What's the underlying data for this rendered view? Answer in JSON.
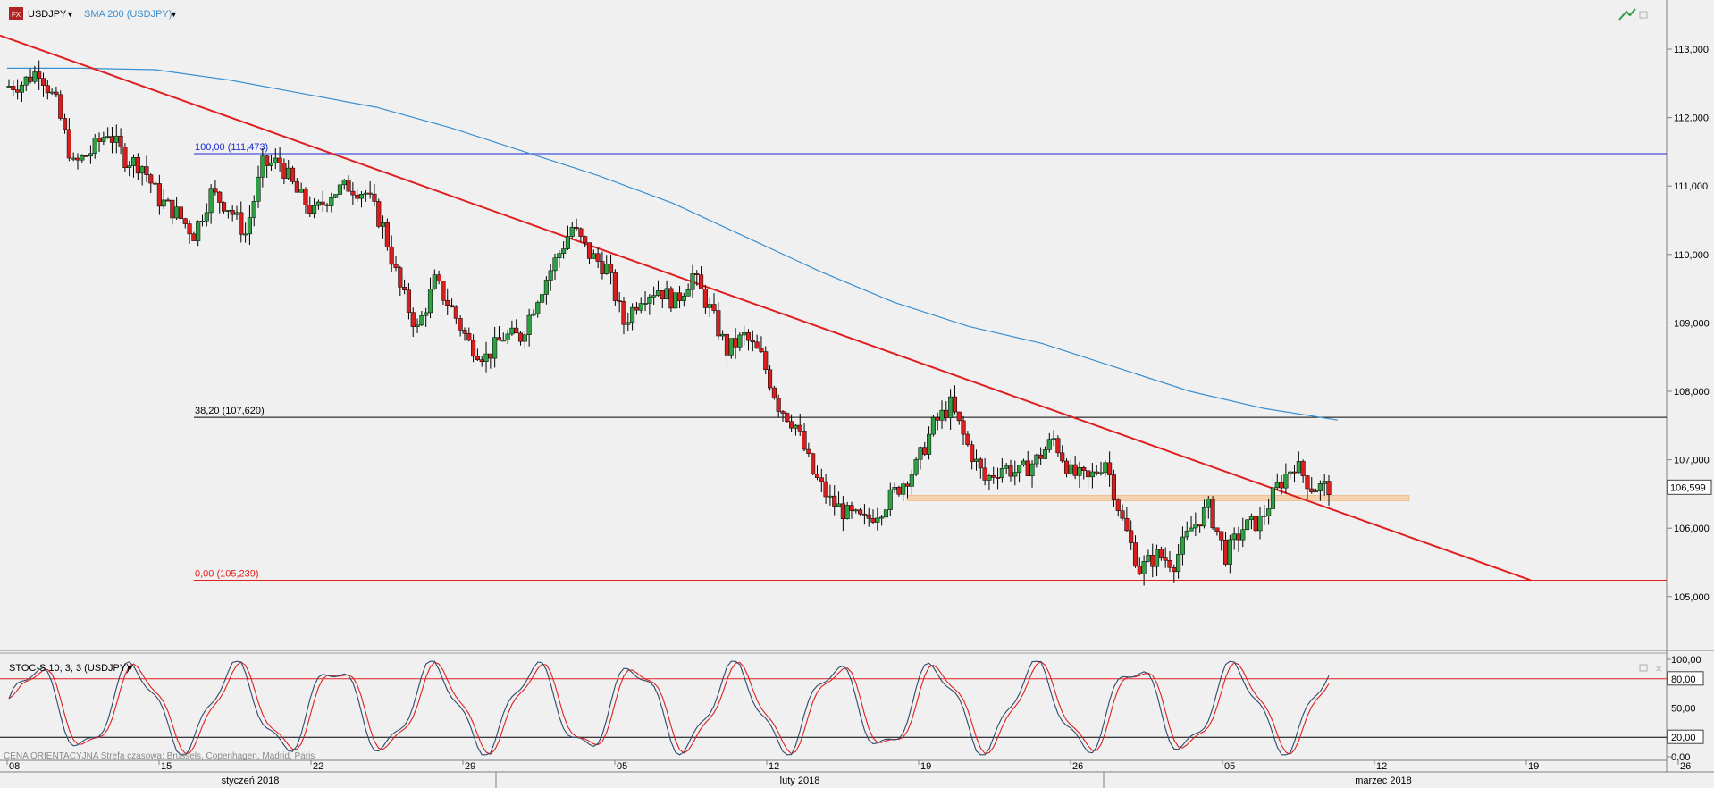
{
  "symbol": {
    "badge": "FX",
    "name": "USDJPY",
    "overlay_label": "SMA 200 (USDJPY)",
    "overlay_color": "#3a8fd0"
  },
  "indicator": {
    "label": "STOC-S 10; 3; 3 (USDJPY)",
    "k_color": "#2e4a6b",
    "d_color": "#e02020",
    "axis_ticks": [
      "100,00",
      "80,00",
      "50,00",
      "20,00",
      "0,00"
    ],
    "boxed_levels": [
      "80,00",
      "20,00"
    ]
  },
  "footer_note": "CENA ORIENTACYJNA   Strefa czasowa: Brussels, Copenhagen, Madrid, Paris",
  "colors": {
    "up_candle": "#2ea043",
    "down_candle": "#d62020",
    "trendline": "#e02020",
    "fib_100": "#1a2bd0",
    "fib_382": "#000000",
    "fib_0": "#e02020",
    "zone": "#f5c89a",
    "background": "#f0f0f0"
  },
  "chart_data": {
    "type": "candlestick",
    "symbol": "USDJPY",
    "y_ticks": [
      "113,000",
      "112,000",
      "111,000",
      "110,000",
      "109,000",
      "108,000",
      "107,000",
      "106,000",
      "105,000"
    ],
    "ylim": [
      104.3,
      113.7
    ],
    "current_price": "106,599",
    "x_day_labels": [
      "08",
      "15",
      "22",
      "29",
      "05",
      "12",
      "19",
      "26",
      "05",
      "12",
      "19",
      "26"
    ],
    "month_labels": [
      "styczeń 2018",
      "luty 2018",
      "marzec 2018"
    ],
    "horizontal_levels": [
      {
        "label": "100,00 (111,473)",
        "value": 111.473
      },
      {
        "label": "38,20 (107,620)",
        "value": 107.62
      },
      {
        "label": "0,00 (105,239)",
        "value": 105.239
      }
    ],
    "support_zone": {
      "low": 106.4,
      "high": 106.48
    },
    "trendline": {
      "start": 113.2,
      "end": 105.24
    },
    "sma200": [
      112.72,
      112.72,
      112.7,
      112.55,
      112.35,
      112.15,
      111.85,
      111.5,
      111.15,
      110.75,
      110.25,
      109.75,
      109.3,
      108.95,
      108.7,
      108.35,
      108.0,
      107.75,
      107.58
    ],
    "closes": [
      112.5,
      112.7,
      112.2,
      111.3,
      111.5,
      111.8,
      111.4,
      111.3,
      110.8,
      110.6,
      110.3,
      110.9,
      110.7,
      110.3,
      111.3,
      111.35,
      110.9,
      110.6,
      110.9,
      111.0,
      110.9,
      110.4,
      109.5,
      108.9,
      109.6,
      109.2,
      108.7,
      108.5,
      108.8,
      108.8,
      109.4,
      109.9,
      110.4,
      110.0,
      109.8,
      109.0,
      109.4,
      109.5,
      109.3,
      109.7,
      109.2,
      108.6,
      108.8,
      108.5,
      107.8,
      107.5,
      106.8,
      106.4,
      106.2,
      106.1,
      106.3,
      106.6,
      106.9,
      107.5,
      107.8,
      107.2,
      106.7,
      106.9,
      106.8,
      107.0,
      107.3,
      106.8,
      106.7,
      107.0,
      106.1,
      105.4,
      105.6,
      105.5,
      106.0,
      106.3,
      105.6,
      106.0,
      106.1,
      106.6,
      106.95,
      106.6,
      106.6
    ]
  }
}
